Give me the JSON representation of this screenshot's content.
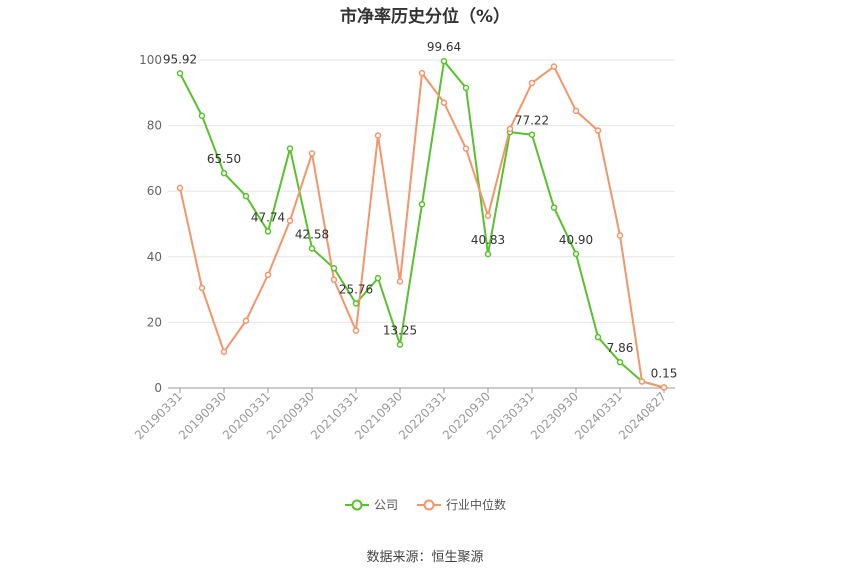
{
  "chart_data": {
    "type": "line",
    "title": "市净率历史分位（%）",
    "ylim": [
      0,
      100
    ],
    "yticks": [
      0,
      20,
      40,
      60,
      80,
      100
    ],
    "x": [
      "20190331",
      "20190630",
      "20190930",
      "20191231",
      "20200331",
      "20200630",
      "20200930",
      "20201231",
      "20210331",
      "20210630",
      "20210930",
      "20211231",
      "20220331",
      "20220630",
      "20220930",
      "20221231",
      "20230331",
      "20230630",
      "20230930",
      "20231231",
      "20240331",
      "20240630",
      "20240827"
    ],
    "tick_labels": [
      "20190331",
      "20190930",
      "20200331",
      "20200930",
      "20210331",
      "20210930",
      "20220331",
      "20220930",
      "20230331",
      "20230930",
      "20240331",
      "20240827"
    ],
    "series": [
      {
        "name": "公司",
        "color": "#5ac12e",
        "values": [
          95.92,
          83,
          65.5,
          58.5,
          47.74,
          73,
          42.58,
          36.5,
          25.76,
          33.5,
          13.25,
          56,
          99.64,
          91.5,
          40.83,
          78,
          77.22,
          55,
          40.9,
          15.5,
          7.86,
          2,
          0.15
        ]
      },
      {
        "name": "行业中位数",
        "color": "#f4956a",
        "values": [
          61,
          30.5,
          11,
          20.5,
          34.5,
          51,
          71.5,
          33,
          17.5,
          77,
          32.5,
          96,
          87,
          73,
          52.5,
          79,
          93,
          98,
          84.5,
          78.5,
          46.5,
          2,
          0.15
        ]
      }
    ],
    "data_labels": [
      {
        "series": 0,
        "index": 0,
        "text": "95.92"
      },
      {
        "series": 0,
        "index": 2,
        "text": "65.50"
      },
      {
        "series": 0,
        "index": 4,
        "text": "47.74"
      },
      {
        "series": 0,
        "index": 6,
        "text": "42.58"
      },
      {
        "series": 0,
        "index": 8,
        "text": "25.76"
      },
      {
        "series": 0,
        "index": 10,
        "text": "13.25"
      },
      {
        "series": 0,
        "index": 12,
        "text": "99.64"
      },
      {
        "series": 0,
        "index": 14,
        "text": "40.83"
      },
      {
        "series": 0,
        "index": 16,
        "text": "77.22"
      },
      {
        "series": 0,
        "index": 18,
        "text": "40.90"
      },
      {
        "series": 0,
        "index": 20,
        "text": "7.86"
      },
      {
        "series": 0,
        "index": 22,
        "text": "0.15"
      }
    ],
    "grid": true,
    "legend_position": "bottom"
  },
  "legend": [
    {
      "label": "公司",
      "color": "#5ac12e"
    },
    {
      "label": "行业中位数",
      "color": "#f4956a"
    }
  ],
  "source": "数据来源：恒生聚源"
}
